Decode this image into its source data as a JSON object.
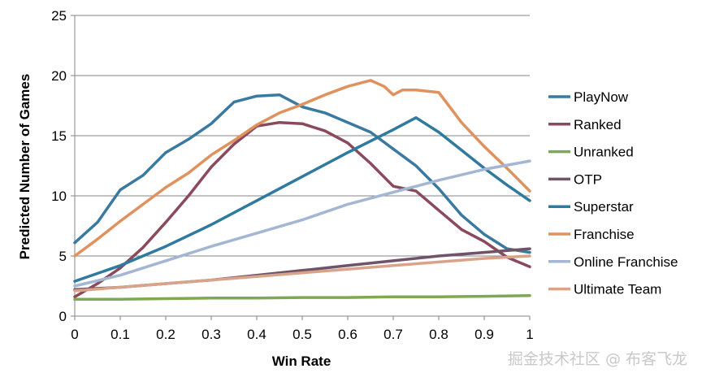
{
  "chart_data": {
    "type": "line",
    "title": "",
    "xlabel": "Win Rate",
    "ylabel": "Predicted Number of Games",
    "xlim": [
      0,
      1
    ],
    "ylim": [
      0,
      25
    ],
    "xticks": [
      "0",
      "0.1",
      "0.2",
      "0.3",
      "0.4",
      "0.5",
      "0.6",
      "0.7",
      "0.8",
      "0.9",
      "1"
    ],
    "yticks": [
      "0",
      "5",
      "10",
      "15",
      "20",
      "25"
    ],
    "grid": "horizontal",
    "legend_position": "right",
    "series": [
      {
        "name": "PlayNow",
        "color": "#3a7aa0",
        "x": [
          0,
          0.05,
          0.1,
          0.15,
          0.2,
          0.25,
          0.3,
          0.35,
          0.4,
          0.45,
          0.5,
          0.55,
          0.6,
          0.65,
          0.7,
          0.75,
          0.8,
          0.85,
          0.9,
          0.95,
          1
        ],
        "y": [
          6.1,
          7.8,
          10.5,
          11.7,
          13.6,
          14.7,
          16.0,
          17.8,
          18.3,
          18.4,
          17.4,
          16.9,
          16.1,
          15.3,
          13.9,
          12.5,
          10.6,
          8.4,
          6.8,
          5.6,
          5.3
        ]
      },
      {
        "name": "Ranked",
        "color": "#8b4a5c",
        "x": [
          0,
          0.05,
          0.1,
          0.15,
          0.2,
          0.25,
          0.3,
          0.35,
          0.4,
          0.45,
          0.5,
          0.55,
          0.6,
          0.65,
          0.7,
          0.75,
          0.8,
          0.85,
          0.9,
          0.95,
          1
        ],
        "y": [
          1.6,
          2.7,
          4.0,
          5.7,
          7.8,
          10.0,
          12.4,
          14.3,
          15.8,
          16.1,
          16.0,
          15.4,
          14.4,
          12.7,
          10.8,
          10.4,
          8.8,
          7.2,
          6.2,
          4.9,
          4.1
        ]
      },
      {
        "name": "Unranked",
        "color": "#7ea852",
        "x": [
          0,
          0.1,
          0.2,
          0.3,
          0.4,
          0.5,
          0.6,
          0.7,
          0.8,
          0.9,
          1
        ],
        "y": [
          1.4,
          1.4,
          1.45,
          1.5,
          1.5,
          1.55,
          1.55,
          1.6,
          1.6,
          1.65,
          1.7
        ]
      },
      {
        "name": "OTP",
        "color": "#6f5368",
        "x": [
          0,
          0.1,
          0.2,
          0.3,
          0.4,
          0.5,
          0.6,
          0.7,
          0.8,
          0.9,
          1
        ],
        "y": [
          2.2,
          2.4,
          2.7,
          3.0,
          3.4,
          3.8,
          4.2,
          4.6,
          5.0,
          5.3,
          5.6
        ]
      },
      {
        "name": "Superstar",
        "color": "#2f7a9e",
        "x": [
          0,
          0.1,
          0.2,
          0.3,
          0.4,
          0.5,
          0.6,
          0.7,
          0.75,
          0.8,
          0.85,
          0.9,
          0.95,
          1
        ],
        "y": [
          2.9,
          4.2,
          5.8,
          7.6,
          9.6,
          11.6,
          13.6,
          15.5,
          16.5,
          15.3,
          13.8,
          12.3,
          10.9,
          9.6
        ]
      },
      {
        "name": "Franchise",
        "color": "#e0925e",
        "x": [
          0,
          0.05,
          0.1,
          0.15,
          0.2,
          0.25,
          0.3,
          0.35,
          0.4,
          0.45,
          0.5,
          0.55,
          0.6,
          0.65,
          0.68,
          0.7,
          0.72,
          0.75,
          0.8,
          0.85,
          0.9,
          0.95,
          1
        ],
        "y": [
          5.0,
          6.4,
          7.9,
          9.3,
          10.7,
          11.9,
          13.4,
          14.6,
          15.9,
          16.9,
          17.6,
          18.4,
          19.1,
          19.6,
          19.1,
          18.4,
          18.8,
          18.8,
          18.6,
          16.1,
          14.1,
          12.3,
          10.4
        ]
      },
      {
        "name": "Online Franchise",
        "color": "#a3b6d3",
        "x": [
          0,
          0.1,
          0.2,
          0.3,
          0.4,
          0.5,
          0.6,
          0.7,
          0.8,
          0.9,
          1
        ],
        "y": [
          2.5,
          3.4,
          4.6,
          5.8,
          6.9,
          8.0,
          9.3,
          10.3,
          11.3,
          12.2,
          12.9
        ]
      },
      {
        "name": "Ultimate Team",
        "color": "#d9a38a",
        "x": [
          0,
          0.1,
          0.2,
          0.3,
          0.4,
          0.5,
          0.6,
          0.7,
          0.8,
          0.9,
          1
        ],
        "y": [
          2.1,
          2.4,
          2.7,
          3.0,
          3.3,
          3.6,
          3.9,
          4.2,
          4.5,
          4.8,
          5.0
        ]
      }
    ]
  },
  "watermark": "掘金技术社区 @ 布客飞龙"
}
